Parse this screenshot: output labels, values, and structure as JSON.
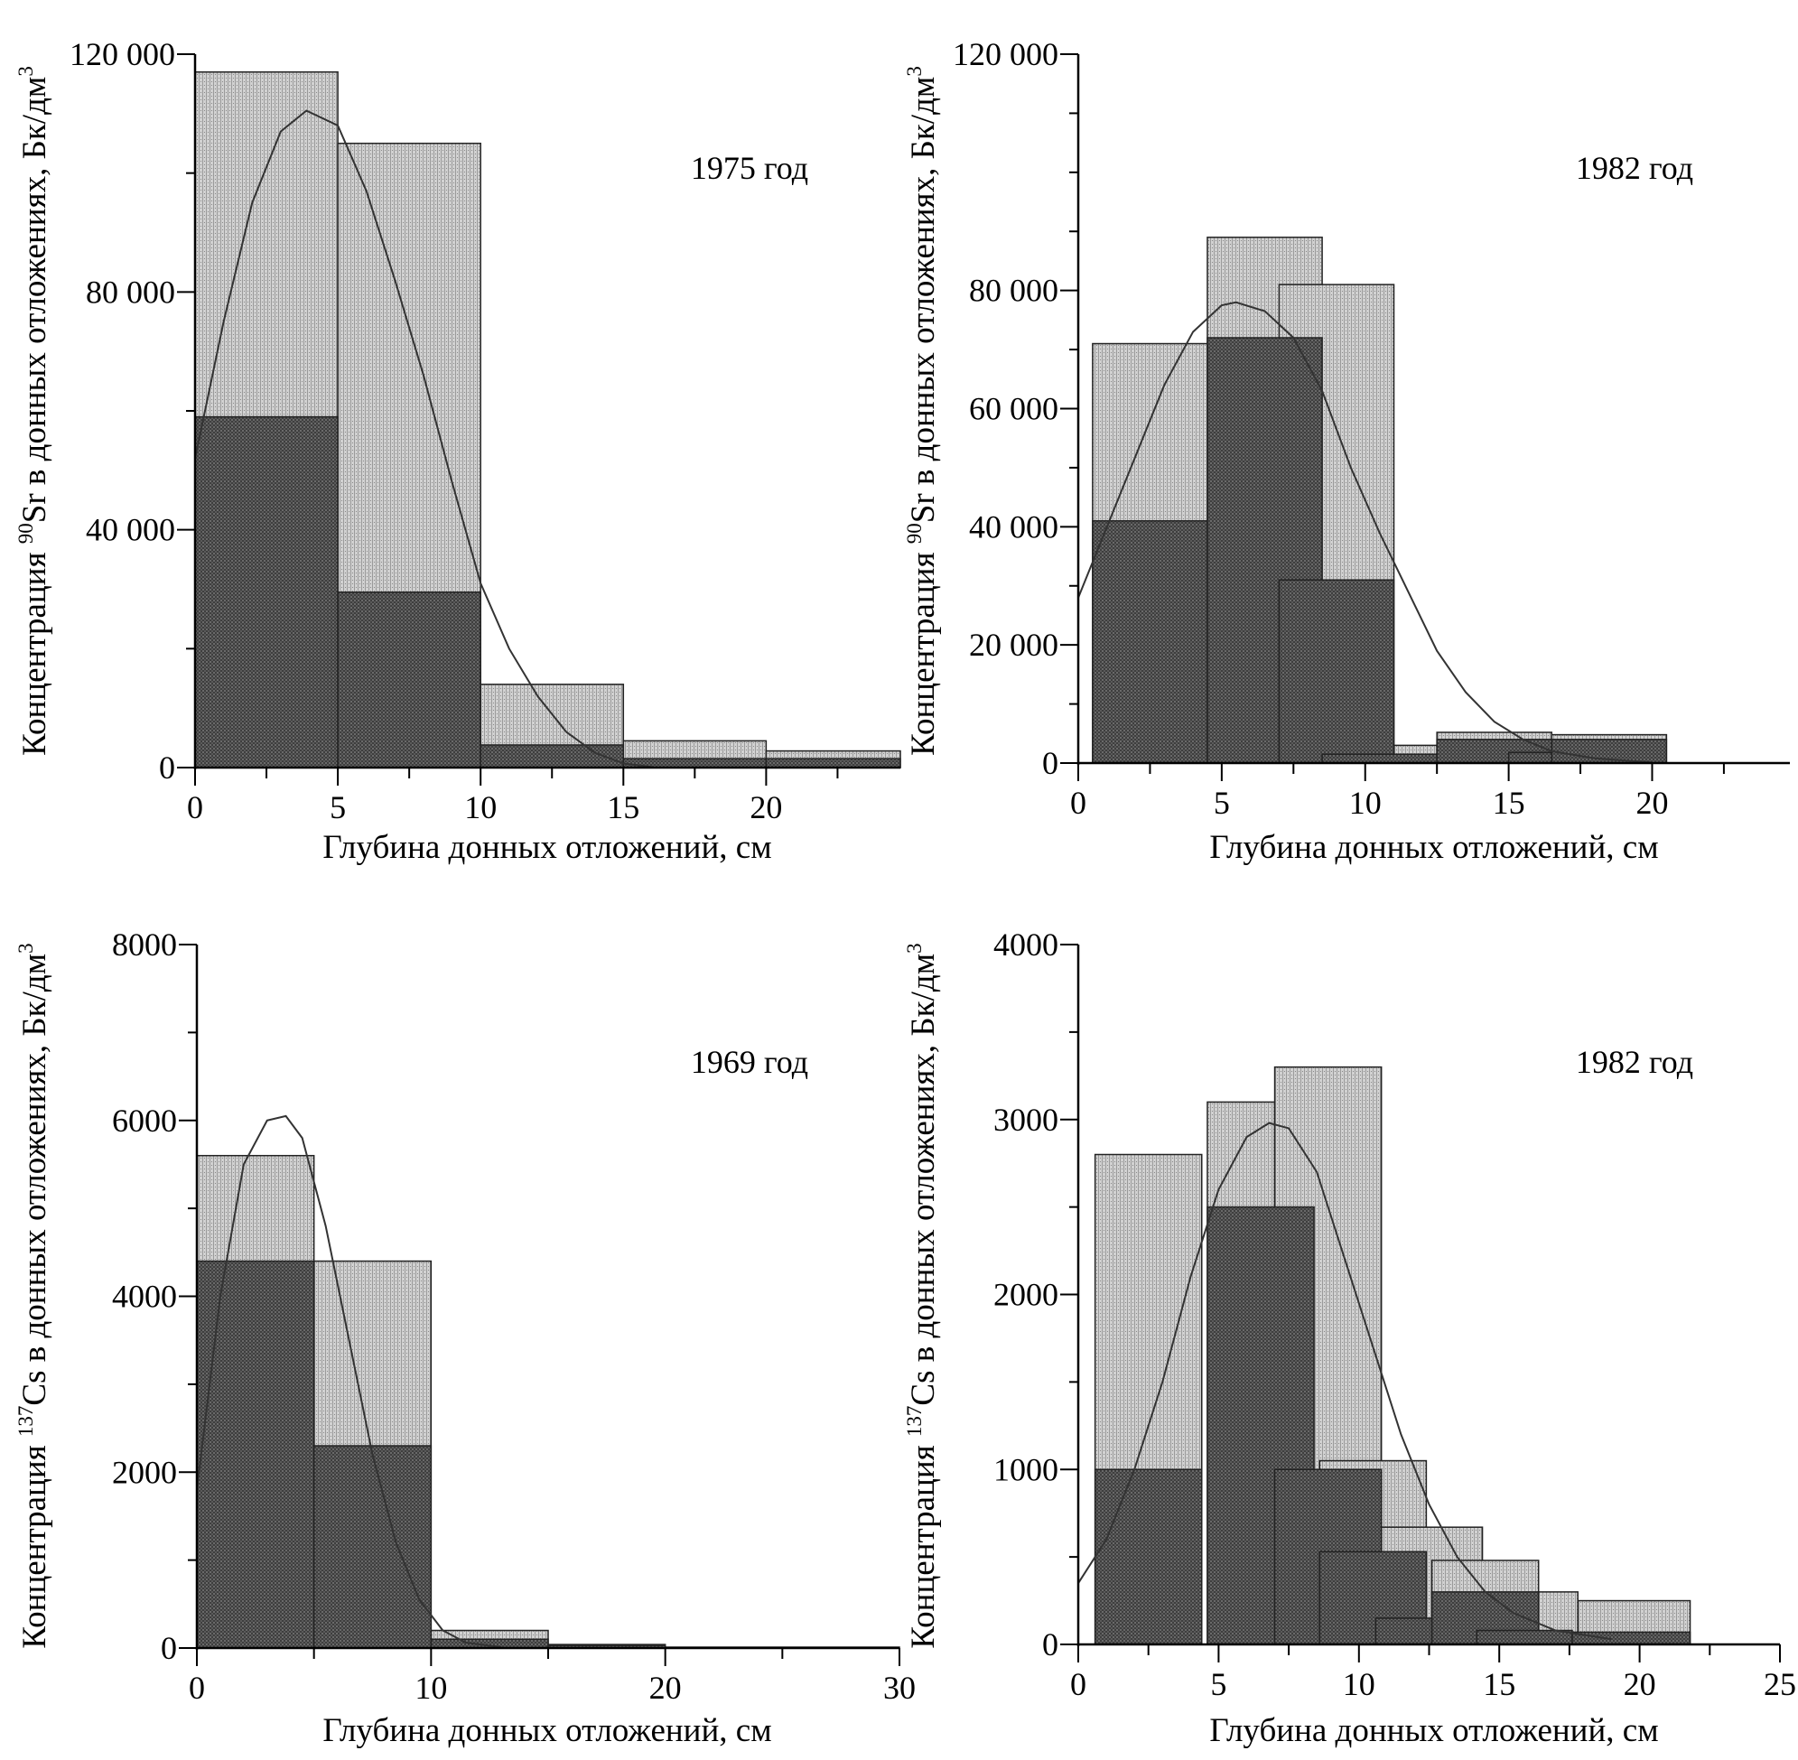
{
  "colors": {
    "light_bar": "#c4c4c4",
    "dark_bar": "#4a4a4a",
    "curve": "#333333",
    "axis": "#000000"
  },
  "chart_data": [
    {
      "type": "bar",
      "annotation": "1975 год",
      "xlabel": "Глубина донных отложений, см",
      "ylabel": {
        "pre": "Концентрация ",
        "sup": "90",
        "el": "Sr в донных отложениях, Бк/дм",
        "unit_sup": "3"
      },
      "xlim": [
        0,
        24.7
      ],
      "ylim": [
        0,
        120000
      ],
      "xticks": [
        0,
        5,
        10,
        15,
        20
      ],
      "xtick_labels": [
        "0",
        "5",
        "10",
        "15",
        "20"
      ],
      "xminor": [
        2.5,
        7.5,
        12.5,
        17.5,
        22.5
      ],
      "yticks": [
        0,
        40000,
        80000,
        120000
      ],
      "ytick_labels": [
        "0",
        "40 000",
        "80 000",
        "120 000"
      ],
      "yminor": [
        20000,
        60000,
        100000
      ],
      "light_bars": [
        [
          0,
          5,
          117000
        ],
        [
          5,
          10,
          105000
        ],
        [
          10,
          15,
          14000
        ],
        [
          15,
          20,
          4500
        ],
        [
          20,
          24.7,
          2800
        ]
      ],
      "dark_bars": [
        [
          0,
          5,
          59000
        ],
        [
          5,
          10,
          29500
        ],
        [
          10,
          15,
          3800
        ],
        [
          15,
          20,
          1500
        ],
        [
          20,
          24.7,
          1500
        ]
      ],
      "curve": [
        [
          0,
          52000
        ],
        [
          1,
          75000
        ],
        [
          2,
          95000
        ],
        [
          3,
          107000
        ],
        [
          3.9,
          110500
        ],
        [
          5,
          108000
        ],
        [
          6,
          97000
        ],
        [
          7,
          82000
        ],
        [
          8,
          66000
        ],
        [
          9,
          48000
        ],
        [
          10,
          31000
        ],
        [
          11,
          20000
        ],
        [
          12,
          12000
        ],
        [
          13,
          6000
        ],
        [
          14,
          2500
        ],
        [
          15,
          700
        ],
        [
          16,
          100
        ]
      ]
    },
    {
      "type": "bar",
      "annotation": "1982 год",
      "xlabel": "Глубина донных отложений, см",
      "ylabel": {
        "pre": "Концентрация ",
        "sup": "90",
        "el": "Sr в донных отложениях, Бк/дм",
        "unit_sup": "3"
      },
      "xlim": [
        0,
        24.8
      ],
      "ylim": [
        0,
        120000
      ],
      "xticks": [
        0,
        5,
        10,
        15,
        20
      ],
      "xtick_labels": [
        "0",
        "5",
        "10",
        "15",
        "20"
      ],
      "xminor": [
        2.5,
        7.5,
        12.5,
        17.5,
        22.5
      ],
      "yticks": [
        0,
        20000,
        40000,
        60000,
        80000,
        120000
      ],
      "ytick_labels": [
        "0",
        "20 000",
        "40 000",
        "60 000",
        "80 000",
        "120 000"
      ],
      "yminor": [
        10000,
        30000,
        50000,
        70000,
        90000,
        100000,
        110000
      ],
      "light_bars": [
        [
          0.5,
          4.5,
          71000
        ],
        [
          4.5,
          8.5,
          89000
        ],
        [
          7,
          11,
          81000
        ],
        [
          11,
          12.5,
          3000
        ],
        [
          12.5,
          16.5,
          5200
        ],
        [
          16.5,
          20.5,
          4800
        ]
      ],
      "dark_bars": [
        [
          0.5,
          4.5,
          41000
        ],
        [
          4.5,
          8.5,
          72000
        ],
        [
          7,
          11,
          31000
        ],
        [
          8.5,
          12.5,
          1500
        ],
        [
          12.5,
          16.5,
          4000
        ],
        [
          15,
          19,
          1800
        ],
        [
          16.5,
          20.5,
          4000
        ]
      ],
      "curve": [
        [
          0,
          28000
        ],
        [
          1,
          40000
        ],
        [
          2,
          52000
        ],
        [
          3,
          64000
        ],
        [
          4,
          73000
        ],
        [
          5,
          77500
        ],
        [
          5.5,
          78000
        ],
        [
          6.5,
          76500
        ],
        [
          7.5,
          72000
        ],
        [
          8.5,
          63000
        ],
        [
          9.5,
          50000
        ],
        [
          10.5,
          39000
        ],
        [
          11.5,
          29000
        ],
        [
          12.5,
          19000
        ],
        [
          13.5,
          12000
        ],
        [
          14.5,
          7000
        ],
        [
          15.5,
          4000
        ],
        [
          16.5,
          2000
        ],
        [
          18,
          800
        ],
        [
          20,
          100
        ]
      ]
    },
    {
      "type": "bar",
      "annotation": "1969 год",
      "xlabel": "Глубина донных отложений, см",
      "ylabel": {
        "pre": "Концентрация ",
        "sup": "137",
        "el": "Cs в донных отложениях, Бк/дм",
        "unit_sup": "3"
      },
      "xlim": [
        0,
        30
      ],
      "ylim": [
        0,
        8000
      ],
      "xticks": [
        0,
        10,
        20,
        30
      ],
      "xtick_labels": [
        "0",
        "10",
        "20",
        "30"
      ],
      "xminor": [
        5,
        15,
        25
      ],
      "yticks": [
        0,
        2000,
        4000,
        6000,
        8000
      ],
      "ytick_labels": [
        "0",
        "2000",
        "4000",
        "6000",
        "8000"
      ],
      "yminor": [
        1000,
        3000,
        5000,
        7000
      ],
      "light_bars": [
        [
          0,
          5,
          5600
        ],
        [
          5,
          10,
          4400
        ],
        [
          10,
          15,
          200
        ],
        [
          15,
          20,
          40
        ]
      ],
      "dark_bars": [
        [
          0,
          5,
          4400
        ],
        [
          5,
          10,
          2300
        ],
        [
          10,
          15,
          100
        ],
        [
          15,
          20,
          30
        ],
        [
          20,
          30,
          10
        ]
      ],
      "curve": [
        [
          0,
          1800
        ],
        [
          1,
          4000
        ],
        [
          2,
          5500
        ],
        [
          3,
          6000
        ],
        [
          3.8,
          6050
        ],
        [
          4.5,
          5800
        ],
        [
          5.5,
          4800
        ],
        [
          6.5,
          3500
        ],
        [
          7.5,
          2200
        ],
        [
          8.5,
          1200
        ],
        [
          9.5,
          550
        ],
        [
          10.5,
          200
        ],
        [
          11.5,
          60
        ],
        [
          13,
          10
        ]
      ]
    },
    {
      "type": "bar",
      "annotation": "1982 год",
      "xlabel": "Глубина донных отложений, см",
      "ylabel": {
        "pre": "Концентрация ",
        "sup": "137",
        "el": "Cs в донных отложениях, Бк/дм",
        "unit_sup": "3"
      },
      "xlim": [
        0,
        25
      ],
      "ylim": [
        0,
        4000
      ],
      "xticks": [
        0,
        5,
        10,
        15,
        20,
        25
      ],
      "xtick_labels": [
        "0",
        "5",
        "10",
        "15",
        "20",
        "25"
      ],
      "xminor": [
        2.5,
        7.5,
        12.5,
        17.5,
        22.5
      ],
      "yticks": [
        0,
        1000,
        2000,
        3000,
        4000
      ],
      "ytick_labels": [
        "0",
        "1000",
        "2000",
        "3000",
        "4000"
      ],
      "yminor": [
        500,
        1500,
        2500,
        3500
      ],
      "light_bars": [
        [
          0.6,
          4.4,
          2800
        ],
        [
          4.6,
          7,
          3100
        ],
        [
          7,
          10.8,
          3300
        ],
        [
          8.6,
          12.4,
          1050
        ],
        [
          10.8,
          14.4,
          670
        ],
        [
          12.6,
          16.4,
          480
        ],
        [
          16.4,
          17.8,
          300
        ],
        [
          17.8,
          21.8,
          250
        ]
      ],
      "dark_bars": [
        [
          0.6,
          4.4,
          1000
        ],
        [
          4.6,
          8.4,
          2500
        ],
        [
          7,
          10.8,
          1000
        ],
        [
          8.6,
          12.4,
          530
        ],
        [
          10.6,
          14.4,
          150
        ],
        [
          12.6,
          16.4,
          300
        ],
        [
          14.2,
          17.6,
          80
        ],
        [
          17.6,
          21.8,
          70
        ]
      ],
      "curve": [
        [
          0,
          350
        ],
        [
          1,
          600
        ],
        [
          2,
          1000
        ],
        [
          3,
          1500
        ],
        [
          4,
          2100
        ],
        [
          5,
          2600
        ],
        [
          6,
          2900
        ],
        [
          6.8,
          2980
        ],
        [
          7.5,
          2950
        ],
        [
          8.5,
          2700
        ],
        [
          9.5,
          2200
        ],
        [
          10.5,
          1700
        ],
        [
          11.5,
          1200
        ],
        [
          12.5,
          800
        ],
        [
          13.5,
          500
        ],
        [
          14.5,
          300
        ],
        [
          15.5,
          180
        ],
        [
          17,
          80
        ],
        [
          19,
          30
        ]
      ]
    }
  ]
}
